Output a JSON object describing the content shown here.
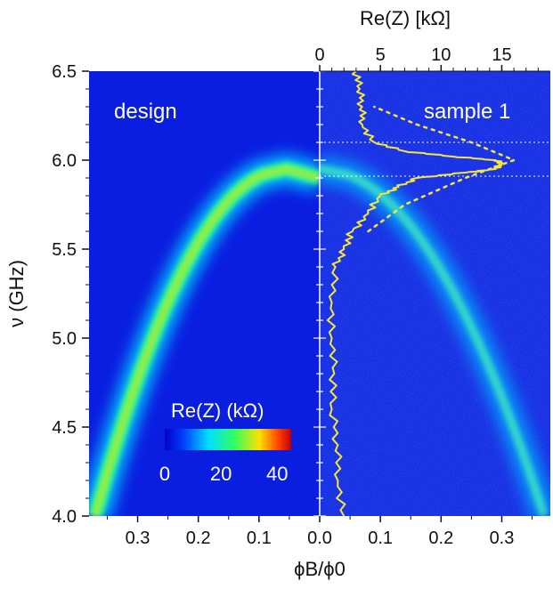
{
  "chart_data": {
    "type": "heatmap",
    "title": "",
    "ylabel": "ν (GHz)",
    "xlabel": "ϕB/ϕ0",
    "top_xlabel": "Re(Z) [kΩ]",
    "ylim": [
      4.0,
      6.5
    ],
    "yticks": [
      "4.0",
      "4.5",
      "5.0",
      "5.5",
      "6.0",
      "6.5"
    ],
    "panels": [
      {
        "label": "design",
        "xlim": [
          0.38,
          0.0
        ],
        "xticks": [
          "0.3",
          "0.2",
          "0.1",
          "0.0"
        ],
        "band": {
          "peak_x": 0.055,
          "peak_y": 5.95,
          "x_at_4": 0.37
        }
      },
      {
        "label": "sample 1",
        "xlim": [
          0.0,
          0.38
        ],
        "xticks": [
          "0.1",
          "0.2",
          "0.3"
        ],
        "band": {
          "peak_x": 0.0,
          "peak_y": 5.95,
          "x_at_4": 0.37
        },
        "reference_lines_ghz": [
          6.1,
          5.91
        ],
        "re_z_trace": {
          "xlim_kohm": [
            0,
            19
          ],
          "xticks": [
            "0",
            "5",
            "10",
            "15"
          ],
          "nu": [
            4.0,
            4.2,
            4.4,
            4.6,
            4.8,
            5.0,
            5.2,
            5.4,
            5.5,
            5.6,
            5.7,
            5.8,
            5.85,
            5.9,
            5.93,
            5.95,
            5.98,
            6.0,
            6.02,
            6.05,
            6.1,
            6.2,
            6.3,
            6.4,
            6.5
          ],
          "re_z": [
            2.0,
            1.5,
            1.5,
            1.0,
            1.2,
            1.0,
            1.0,
            1.3,
            2.0,
            2.7,
            4.0,
            5.0,
            6.5,
            8.0,
            12.0,
            14.5,
            15.0,
            14.5,
            11.0,
            7.0,
            4.5,
            3.5,
            3.5,
            3.3,
            3.0
          ],
          "theory_dotted": {
            "nu": [
              5.6,
              5.75,
              5.9,
              6.0,
              6.1,
              6.2,
              6.3
            ],
            "re_z": [
              4.0,
              7.0,
              12.0,
              16.0,
              12.5,
              8.0,
              4.5
            ]
          }
        }
      }
    ],
    "colorbar": {
      "label": "Re(Z) (kΩ)",
      "ticks": [
        "0",
        "20",
        "40"
      ],
      "range": [
        0,
        45
      ]
    },
    "colors": {
      "background": "#0a1ee0",
      "trace": "#f5e63c",
      "guide": "#ffffff"
    }
  }
}
